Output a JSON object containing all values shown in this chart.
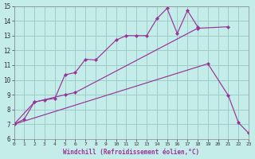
{
  "xlabel": "Windchill (Refroidissement éolien,°C)",
  "background_color": "#c4ece8",
  "grid_color": "#9ececa",
  "line_color": "#993399",
  "xlim": [
    0,
    23
  ],
  "ylim": [
    6,
    15
  ],
  "xticks": [
    0,
    1,
    2,
    3,
    4,
    5,
    6,
    7,
    8,
    9,
    10,
    11,
    12,
    13,
    14,
    15,
    16,
    17,
    18,
    19,
    20,
    21,
    22,
    23
  ],
  "yticks": [
    6,
    7,
    8,
    9,
    10,
    11,
    12,
    13,
    14,
    15
  ],
  "line1_x": [
    0,
    1,
    2,
    3,
    4,
    5,
    6,
    7,
    8,
    10,
    11,
    12,
    13,
    14,
    15,
    16,
    17,
    18
  ],
  "line1_y": [
    7.0,
    7.35,
    8.5,
    8.65,
    8.75,
    10.35,
    10.5,
    11.4,
    11.35,
    12.7,
    13.0,
    13.0,
    13.0,
    14.15,
    14.85,
    13.15,
    14.7,
    13.6
  ],
  "line2_x": [
    0,
    2,
    5,
    6,
    18,
    21
  ],
  "line2_y": [
    7.0,
    8.5,
    9.0,
    9.15,
    13.5,
    13.6
  ],
  "line3_x": [
    0,
    19,
    21,
    22,
    23
  ],
  "line3_y": [
    7.0,
    11.1,
    8.95,
    7.1,
    6.4
  ]
}
